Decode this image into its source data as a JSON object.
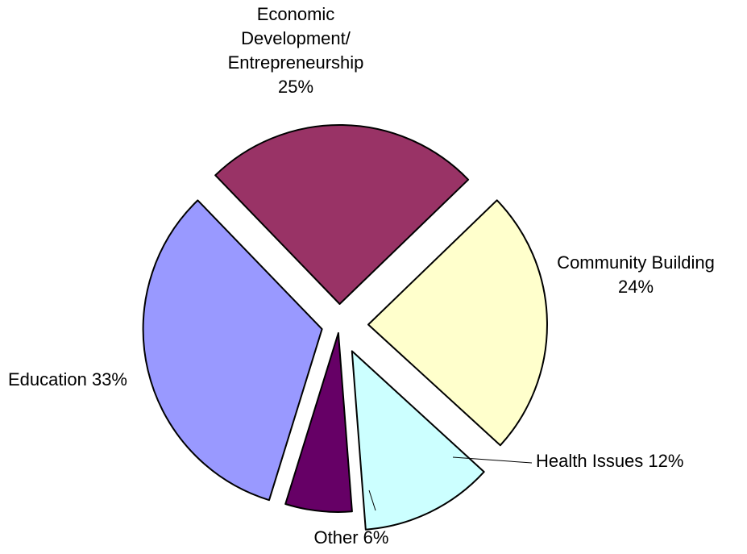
{
  "chart_data": {
    "type": "pie",
    "slices": [
      {
        "label_lines": [
          "Economic",
          "Development/",
          "Entrepreneurship",
          "25%"
        ],
        "value": 25,
        "color": "#993366"
      },
      {
        "label_lines": [
          "Community Building",
          "24%"
        ],
        "value": 24,
        "color": "#FFFFCC"
      },
      {
        "label_lines": [
          "Health Issues 12%"
        ],
        "value": 12,
        "color": "#CCFFFF"
      },
      {
        "label_lines": [
          "Other 6%"
        ],
        "value": 6,
        "color": "#660066"
      },
      {
        "label_lines": [
          "Education 33%"
        ],
        "value": 33,
        "color": "#9999FF"
      }
    ],
    "start_angle_deg": -44,
    "direction": "clockwise",
    "exploded": true,
    "legend": "none"
  }
}
